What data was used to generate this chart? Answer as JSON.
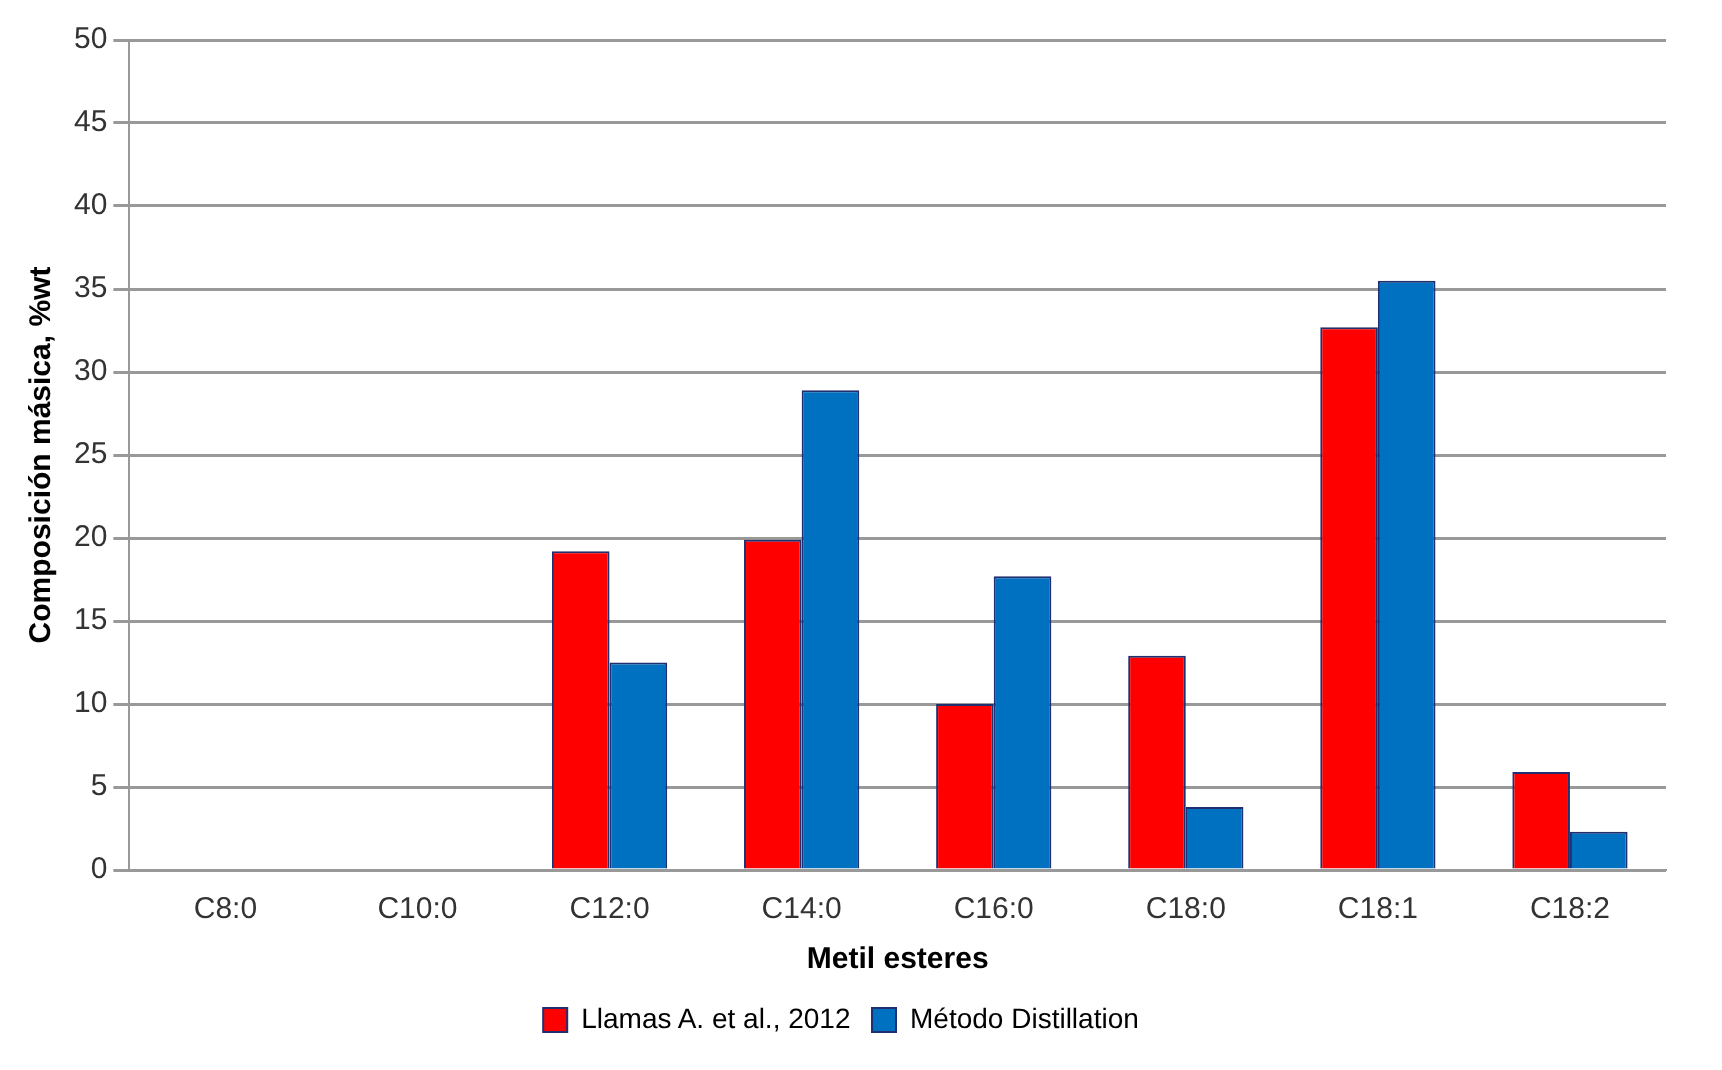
{
  "chart_data": {
    "type": "bar",
    "xlabel": "Metil esteres",
    "ylabel": "Composición másica, %wt",
    "categories": [
      "C8:0",
      "C10:0",
      "C12:0",
      "C14:0",
      "C16:0",
      "C18:0",
      "C18:1",
      "C18:2"
    ],
    "series": [
      {
        "name": "Llamas A. et al., 2012",
        "color": "#ff0000",
        "values": [
          null,
          null,
          19.2,
          19.9,
          10.0,
          12.9,
          32.7,
          5.9
        ]
      },
      {
        "name": "Método Distillation",
        "color": "#0070c0",
        "values": [
          null,
          null,
          12.5,
          28.9,
          17.7,
          3.8,
          35.5,
          2.3
        ]
      }
    ],
    "ylim": [
      0,
      50
    ],
    "yticks": [
      0,
      5,
      10,
      15,
      20,
      25,
      30,
      35,
      40,
      45,
      50
    ],
    "grid": "y",
    "legend": "bottom"
  }
}
